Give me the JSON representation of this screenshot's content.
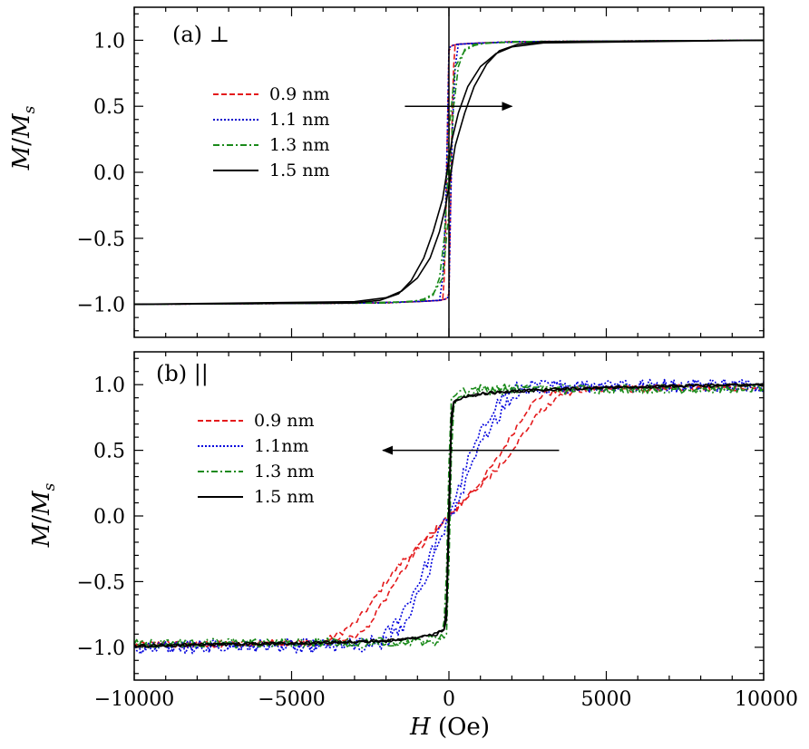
{
  "chart_data": [
    {
      "type": "line",
      "panel_label": "(a) ⊥",
      "xlabel": "H (Oe)",
      "ylabel": "M/M_s",
      "ylabel_main": "M",
      "ylabel_sub": "s",
      "xlim": [
        -10000,
        10000
      ],
      "ylim": [
        -1.25,
        1.25
      ],
      "x_ticks": [
        -10000,
        -5000,
        0,
        5000,
        10000
      ],
      "x_tick_labels": [
        "−10000",
        "−5000",
        "0",
        "5000",
        "10000"
      ],
      "y_ticks": [
        -1.0,
        -0.5,
        0.0,
        0.5,
        1.0
      ],
      "y_tick_labels": [
        "−1.0",
        "−0.5",
        "0.0",
        "0.5",
        "1.0"
      ],
      "arrow": {
        "from_x": -1400,
        "to_x": 2000,
        "y": 0.5,
        "direction": "right"
      },
      "vertical_line_x": 0,
      "legend_position": "upper-left-center",
      "series": [
        {
          "name": "0.9 nm",
          "color": "#e41a1c",
          "style": "dashed",
          "ascending": {
            "x": [
              -10000,
              -2000,
              -200,
              -150,
              -100,
              -50,
              0,
              100,
              300,
              1000,
              3000,
              10000
            ],
            "y": [
              -1.0,
              -0.99,
              -0.97,
              -0.8,
              -0.4,
              0.3,
              0.92,
              0.96,
              0.97,
              0.98,
              0.99,
              1.0
            ]
          },
          "descending": {
            "x": [
              10000,
              2000,
              200,
              150,
              100,
              50,
              0,
              -100,
              -300,
              -1000,
              -3000,
              -10000
            ],
            "y": [
              1.0,
              0.99,
              0.97,
              0.8,
              0.4,
              -0.3,
              -0.92,
              -0.96,
              -0.97,
              -0.98,
              -0.99,
              -1.0
            ]
          }
        },
        {
          "name": "1.1 nm",
          "color": "#0000cc",
          "style": "dotted",
          "ascending": {
            "x": [
              -10000,
              -2000,
              -300,
              -200,
              -120,
              -50,
              0,
              100,
              300,
              1000,
              3000,
              10000
            ],
            "y": [
              -1.0,
              -0.99,
              -0.97,
              -0.8,
              -0.4,
              0.3,
              0.94,
              0.96,
              0.97,
              0.98,
              0.99,
              1.0
            ]
          },
          "descending": {
            "x": [
              10000,
              2000,
              300,
              200,
              120,
              50,
              0,
              -100,
              -300,
              -1000,
              -3000,
              -10000
            ],
            "y": [
              1.0,
              0.99,
              0.97,
              0.8,
              0.4,
              -0.3,
              -0.94,
              -0.96,
              -0.97,
              -0.98,
              -0.99,
              -1.0
            ]
          }
        },
        {
          "name": "1.3 nm",
          "color": "#1a8a1a",
          "style": "dashdot",
          "ascending": {
            "x": [
              -10000,
              -2000,
              -800,
              -500,
              -300,
              -150,
              -50,
              0,
              200,
              500,
              800,
              1200,
              3000,
              10000
            ],
            "y": [
              -1.0,
              -0.99,
              -0.97,
              -0.93,
              -0.8,
              -0.5,
              -0.1,
              0.3,
              0.8,
              0.92,
              0.96,
              0.98,
              0.99,
              1.0
            ]
          },
          "descending": {
            "x": [
              10000,
              2000,
              800,
              500,
              300,
              150,
              50,
              0,
              -200,
              -500,
              -800,
              -1200,
              -3000,
              -10000
            ],
            "y": [
              1.0,
              0.99,
              0.97,
              0.93,
              0.8,
              0.5,
              0.1,
              -0.3,
              -0.8,
              -0.92,
              -0.96,
              -0.98,
              -0.99,
              -1.0
            ]
          }
        },
        {
          "name": "1.5 nm",
          "color": "#000000",
          "style": "solid",
          "ascending": {
            "x": [
              -10000,
              -3000,
              -2000,
              -1500,
              -1000,
              -600,
              -300,
              -100,
              0,
              200,
              500,
              800,
              1200,
              1600,
              2200,
              3000,
              10000
            ],
            "y": [
              -1.0,
              -0.98,
              -0.95,
              -0.9,
              -0.8,
              -0.65,
              -0.45,
              -0.25,
              -0.1,
              0.2,
              0.45,
              0.65,
              0.82,
              0.92,
              0.97,
              0.99,
              1.0
            ]
          },
          "descending": {
            "x": [
              10000,
              3000,
              2000,
              1500,
              1000,
              600,
              300,
              100,
              0,
              -200,
              -500,
              -800,
              -1200,
              -1600,
              -2200,
              -3000,
              -10000
            ],
            "y": [
              1.0,
              0.98,
              0.95,
              0.9,
              0.8,
              0.65,
              0.45,
              0.25,
              0.1,
              -0.2,
              -0.45,
              -0.65,
              -0.82,
              -0.92,
              -0.97,
              -0.99,
              -1.0
            ]
          }
        }
      ]
    },
    {
      "type": "line",
      "panel_label": "(b) ||",
      "xlabel": "H (Oe)",
      "ylabel": "M/M_s",
      "ylabel_main": "M",
      "ylabel_sub": "s",
      "xlim": [
        -10000,
        10000
      ],
      "ylim": [
        -1.25,
        1.25
      ],
      "x_ticks": [
        -10000,
        -5000,
        0,
        5000,
        10000
      ],
      "x_tick_labels": [
        "−10000",
        "−5000",
        "0",
        "5000",
        "10000"
      ],
      "y_ticks": [
        -1.0,
        -0.5,
        0.0,
        0.5,
        1.0
      ],
      "y_tick_labels": [
        "−1.0",
        "−0.5",
        "0.0",
        "0.5",
        "1.0"
      ],
      "arrow": {
        "from_x": 3500,
        "to_x": -2100,
        "y": 0.5,
        "direction": "left"
      },
      "legend_position": "middle-left",
      "noise_amplitude": [
        0.025,
        0.05,
        0.035,
        0.012
      ],
      "series": [
        {
          "name": "0.9 nm",
          "color": "#e41a1c",
          "style": "dashed",
          "ascending": {
            "x": [
              -10000,
              -4000,
              -3500,
              -3000,
              -2500,
              -2000,
              -1500,
              -1000,
              -500,
              0,
              500,
              1000,
              1500,
              2000,
              2500,
              3000,
              4000,
              10000
            ],
            "y": [
              -0.98,
              -0.96,
              -0.9,
              -0.82,
              -0.68,
              -0.5,
              -0.35,
              -0.24,
              -0.13,
              -0.02,
              0.12,
              0.26,
              0.42,
              0.62,
              0.82,
              0.93,
              0.97,
              0.98
            ]
          },
          "descending": {
            "x": [
              10000,
              4000,
              3500,
              3000,
              2500,
              2000,
              1500,
              1000,
              500,
              0,
              -500,
              -1000,
              -1500,
              -2000,
              -2500,
              -3000,
              -4000,
              -10000
            ],
            "y": [
              0.98,
              0.96,
              0.9,
              0.82,
              0.68,
              0.5,
              0.35,
              0.24,
              0.13,
              0.02,
              -0.12,
              -0.26,
              -0.42,
              -0.62,
              -0.82,
              -0.93,
              -0.97,
              -0.98
            ]
          }
        },
        {
          "name": "1.1nm",
          "color": "#0000dd",
          "style": "dotted",
          "ascending": {
            "x": [
              -10000,
              -3000,
              -2200,
              -1800,
              -1400,
              -1000,
              -600,
              -300,
              0,
              300,
              600,
              1000,
              1400,
              1800,
              2200,
              3000,
              10000
            ],
            "y": [
              -1.0,
              -0.98,
              -0.95,
              -0.85,
              -0.7,
              -0.52,
              -0.3,
              -0.12,
              0.02,
              0.2,
              0.42,
              0.62,
              0.82,
              0.93,
              0.98,
              0.99,
              1.0
            ]
          },
          "descending": {
            "x": [
              10000,
              3000,
              2200,
              1800,
              1400,
              1000,
              600,
              300,
              0,
              -300,
              -600,
              -1000,
              -1400,
              -1800,
              -2200,
              -3000,
              -10000
            ],
            "y": [
              1.0,
              0.98,
              0.95,
              0.85,
              0.7,
              0.52,
              0.3,
              0.12,
              -0.02,
              -0.2,
              -0.42,
              -0.62,
              -0.82,
              -0.93,
              -0.98,
              -0.99,
              -1.0
            ]
          }
        },
        {
          "name": "1.3 nm",
          "color": "#1a8a1a",
          "style": "dashdot",
          "ascending": {
            "x": [
              -10000,
              -2000,
              -800,
              -300,
              -150,
              -50,
              0,
              50,
              150,
              400,
              1000,
              3000,
              10000
            ],
            "y": [
              -0.97,
              -0.96,
              -0.95,
              -0.92,
              -0.8,
              -0.3,
              0.4,
              0.85,
              0.93,
              0.96,
              0.97,
              0.97,
              0.97
            ]
          },
          "descending": {
            "x": [
              10000,
              2000,
              800,
              300,
              150,
              50,
              0,
              -50,
              -150,
              -400,
              -1000,
              -3000,
              -10000
            ],
            "y": [
              0.97,
              0.96,
              0.95,
              0.92,
              0.8,
              0.3,
              -0.4,
              -0.85,
              -0.93,
              -0.96,
              -0.97,
              -0.97,
              -0.97
            ]
          }
        },
        {
          "name": "1.5 nm",
          "color": "#000000",
          "style": "solid",
          "ascending": {
            "x": [
              -10000,
              -5000,
              -2000,
              -1000,
              -400,
              -150,
              -50,
              0,
              50,
              150,
              400,
              1000,
              2000,
              5000,
              10000
            ],
            "y": [
              -0.99,
              -0.97,
              -0.95,
              -0.93,
              -0.9,
              -0.86,
              -0.6,
              0.1,
              0.75,
              0.87,
              0.9,
              0.93,
              0.95,
              0.98,
              1.0
            ]
          },
          "descending": {
            "x": [
              10000,
              5000,
              2000,
              1000,
              400,
              150,
              50,
              0,
              -50,
              -150,
              -400,
              -1000,
              -2000,
              -5000,
              -10000
            ],
            "y": [
              1.0,
              0.98,
              0.95,
              0.93,
              0.9,
              0.86,
              0.6,
              -0.1,
              -0.75,
              -0.87,
              -0.9,
              -0.93,
              -0.95,
              -0.97,
              -0.99
            ]
          }
        }
      ]
    }
  ]
}
